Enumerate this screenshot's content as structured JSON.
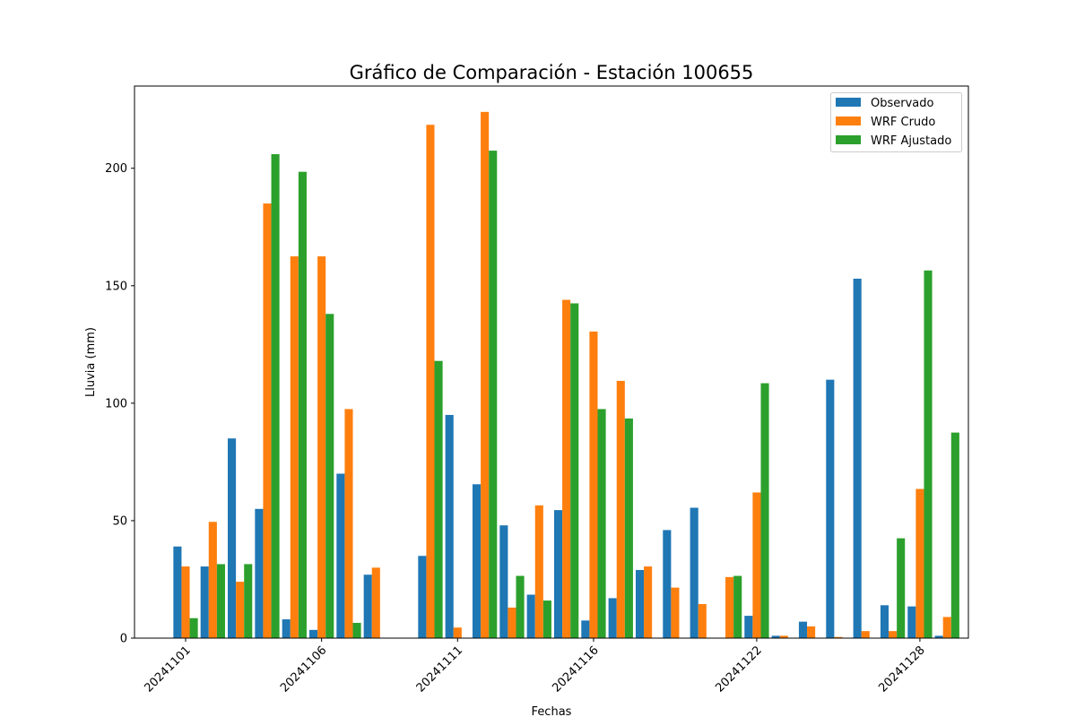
{
  "chart_data": {
    "type": "bar",
    "title": "Gráfico de Comparación - Estación 100655",
    "xlabel": "Fechas",
    "ylabel": "Lluvia (mm)",
    "ylim": [
      0,
      235
    ],
    "yticks": [
      0,
      50,
      100,
      150,
      200
    ],
    "xticks": [
      "20241101",
      "20241106",
      "20241111",
      "20241116",
      "20241122",
      "20241128"
    ],
    "legend_position": "top-right",
    "grid": false,
    "series": [
      {
        "name": "Observado",
        "color": "#1f77b4",
        "values": [
          39,
          30.5,
          85,
          55,
          8,
          3.5,
          70,
          27,
          0,
          35,
          95,
          65.5,
          48,
          18.5,
          54.5,
          7.5,
          17,
          29,
          46,
          55.5,
          0,
          9.5,
          1,
          7,
          110,
          153,
          14,
          13.5,
          1
        ]
      },
      {
        "name": "WRF Crudo",
        "color": "#ff7f0e",
        "values": [
          30.5,
          49.5,
          24,
          185,
          162.5,
          162.5,
          97.5,
          30,
          0,
          218.5,
          4.5,
          224,
          13,
          56.5,
          144,
          130.5,
          109.5,
          30.5,
          21.5,
          14.5,
          26,
          62,
          1,
          5,
          0.5,
          3,
          3,
          63.5,
          9
        ]
      },
      {
        "name": "WRF Ajustado",
        "color": "#2ca02c",
        "values": [
          8.5,
          31.5,
          31.5,
          206,
          198.5,
          138,
          6.5,
          0,
          0,
          118,
          0,
          207.5,
          26.5,
          16,
          142.5,
          97.5,
          93.5,
          0,
          0,
          0,
          26.5,
          108.5,
          0,
          0,
          0,
          0,
          42.5,
          156.5,
          87.5
        ]
      }
    ]
  }
}
